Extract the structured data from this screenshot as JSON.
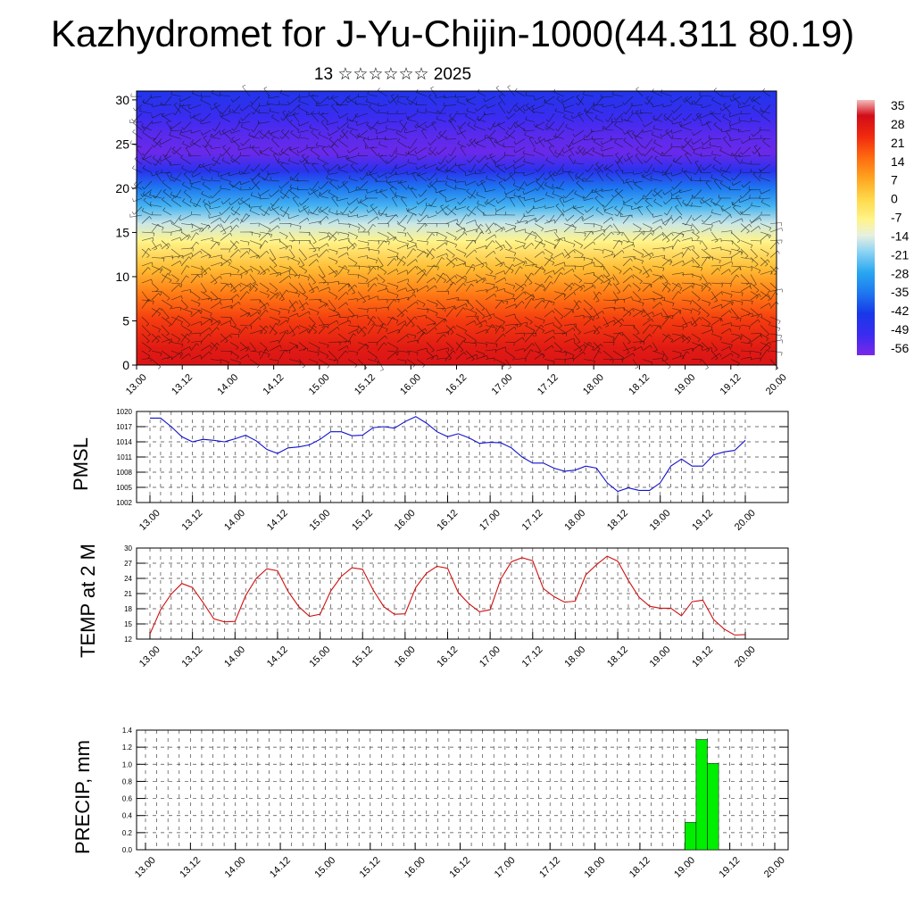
{
  "header": {
    "title": "Kazhydromet for J-Yu-Chijin-1000(44.311 80.19)",
    "subtitle": "13 ☆☆☆☆☆☆ 2025"
  },
  "colors": {
    "pmsl_line": "#1010d0",
    "temp_line": "#d01010",
    "precip_bar": "#00ee00"
  },
  "chart_data": [
    {
      "type": "heatmap",
      "title": "",
      "x_tick_labels": [
        "13.00",
        "13.12",
        "14.00",
        "14.12",
        "15.00",
        "15.12",
        "16.00",
        "16.12",
        "17.00",
        "17.12",
        "18.00",
        "18.12",
        "19.00",
        "19.12",
        "20.00"
      ],
      "y_tick_labels": [
        "0",
        "5",
        "10",
        "15",
        "20",
        "25",
        "30"
      ],
      "ylim": [
        0,
        31
      ],
      "description_of_field": "temperature by level (y), with wind barbs overlaid",
      "layers": [
        {
          "level": 0,
          "value": 30
        },
        {
          "level": 2,
          "value": 28
        },
        {
          "level": 5,
          "value": 22
        },
        {
          "level": 8,
          "value": 14
        },
        {
          "level": 11,
          "value": 4
        },
        {
          "level": 14,
          "value": -8
        },
        {
          "level": 16,
          "value": -16
        },
        {
          "level": 18,
          "value": -26
        },
        {
          "level": 20,
          "value": -36
        },
        {
          "level": 22,
          "value": -48
        },
        {
          "level": 24,
          "value": -58
        },
        {
          "level": 26,
          "value": -56
        },
        {
          "level": 28,
          "value": -52
        },
        {
          "level": 31,
          "value": -46
        }
      ],
      "colorbar": {
        "labels": [
          "35",
          "28",
          "21",
          "14",
          "7",
          "0",
          "-7",
          "-14",
          "-21",
          "-28",
          "-35",
          "-42",
          "-49",
          "-56"
        ],
        "range": [
          -60,
          38
        ]
      }
    },
    {
      "type": "line",
      "ylabel": "PMSL",
      "x_tick_labels": [
        "13.00",
        "13.12",
        "14.00",
        "14.12",
        "15.00",
        "15.12",
        "16.00",
        "16.12",
        "17.00",
        "17.12",
        "18.00",
        "18.12",
        "19.00",
        "19.12",
        "20.00"
      ],
      "y_tick_labels": [
        "1002",
        "1005",
        "1008",
        "1011",
        "1014",
        "1017",
        "1020"
      ],
      "ylim": [
        1002,
        1020
      ],
      "grid": true,
      "x_step_hours": 3,
      "values": [
        1018.7,
        1018.7,
        1017.0,
        1015.0,
        1014.0,
        1014.5,
        1014.3,
        1014.0,
        1014.6,
        1015.3,
        1014.2,
        1012.5,
        1011.7,
        1012.8,
        1013.0,
        1013.4,
        1014.5,
        1016.0,
        1016.0,
        1015.2,
        1015.3,
        1016.8,
        1017.0,
        1016.7,
        1018.0,
        1019.0,
        1017.7,
        1016.0,
        1015.0,
        1015.6,
        1014.8,
        1013.7,
        1013.9,
        1013.8,
        1012.8,
        1011.0,
        1009.8,
        1009.8,
        1008.8,
        1008.2,
        1008.4,
        1009.2,
        1008.8,
        1005.9,
        1004.2,
        1004.9,
        1004.4,
        1004.4,
        1005.9,
        1009.2,
        1010.6,
        1009.2,
        1009.2,
        1011.4,
        1012.0,
        1012.3,
        1014.3
      ]
    },
    {
      "type": "line",
      "ylabel": "TEMP at 2 M",
      "x_tick_labels": [
        "13.00",
        "13.12",
        "14.00",
        "14.12",
        "15.00",
        "15.12",
        "16.00",
        "16.12",
        "17.00",
        "17.12",
        "18.00",
        "18.12",
        "19.00",
        "19.12",
        "20.00"
      ],
      "y_tick_labels": [
        "12",
        "15",
        "18",
        "21",
        "24",
        "27",
        "30"
      ],
      "ylim": [
        12,
        30
      ],
      "grid": true,
      "x_step_hours": 3,
      "values": [
        13.0,
        17.8,
        20.9,
        23.0,
        22.2,
        19.2,
        16.0,
        15.4,
        15.5,
        20.6,
        24.0,
        25.9,
        25.5,
        21.4,
        18.4,
        16.5,
        16.9,
        21.5,
        24.4,
        26.1,
        25.8,
        21.7,
        18.4,
        16.9,
        17.0,
        22.2,
        25.0,
        26.4,
        26.0,
        21.2,
        19.0,
        17.4,
        17.8,
        23.9,
        27.3,
        28.1,
        27.5,
        22.0,
        20.4,
        19.3,
        19.5,
        24.7,
        26.7,
        28.4,
        27.4,
        23.6,
        20.3,
        18.5,
        18.1,
        18.1,
        16.6,
        19.4,
        19.7,
        15.9,
        14.0,
        12.8,
        12.9
      ]
    },
    {
      "type": "bar",
      "ylabel": "PRECIP, mm",
      "x_tick_labels": [
        "13.00",
        "13.12",
        "14.00",
        "14.12",
        "15.00",
        "15.12",
        "16.00",
        "16.12",
        "17.00",
        "17.12",
        "18.00",
        "18.12",
        "19.00",
        "19.12",
        "20.00"
      ],
      "y_tick_labels": [
        "0.0",
        "0.2",
        "0.4",
        "0.6",
        "0.8",
        "1.0",
        "1.2",
        "1.4"
      ],
      "ylim": [
        0,
        1.4
      ],
      "grid": true,
      "bars": [
        {
          "x": "19.03",
          "value": 0.32
        },
        {
          "x": "19.06",
          "value": 1.29
        },
        {
          "x": "19.09",
          "value": 1.01
        }
      ]
    }
  ]
}
